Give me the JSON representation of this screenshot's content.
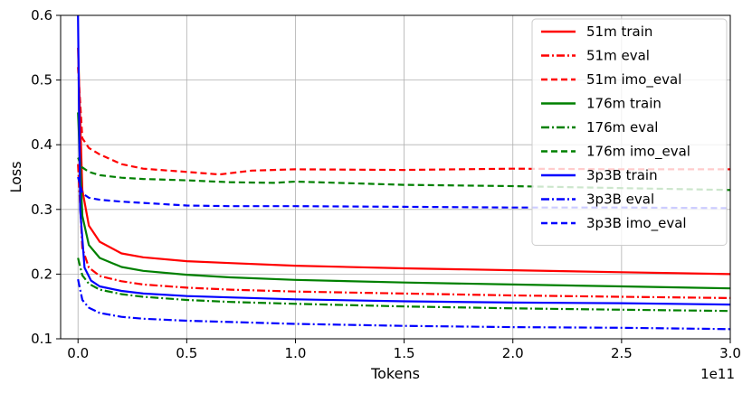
{
  "chart_data": {
    "type": "line",
    "xlabel": "Tokens",
    "ylabel": "Loss",
    "x_offset_label": "1e11",
    "xlim": [
      -0.08,
      3.0
    ],
    "ylim": [
      0.1,
      0.6
    ],
    "x_ticks": [
      0.0,
      0.5,
      1.0,
      1.5,
      2.0,
      2.5,
      3.0
    ],
    "x_tick_labels": [
      "0.0",
      "0.5",
      "1.0",
      "1.5",
      "2.0",
      "2.5",
      "3.0"
    ],
    "y_ticks": [
      0.1,
      0.2,
      0.3,
      0.4,
      0.5,
      0.6
    ],
    "y_tick_labels": [
      "0.1",
      "0.2",
      "0.3",
      "0.4",
      "0.5",
      "0.6"
    ],
    "grid": true,
    "legend_position": "top-right",
    "series": [
      {
        "name": "51m train",
        "color": "#ff0000",
        "style": "solid",
        "x": [
          0.0,
          0.02,
          0.05,
          0.1,
          0.2,
          0.3,
          0.5,
          0.7,
          1.0,
          1.5,
          2.0,
          2.5,
          3.0
        ],
        "y": [
          0.55,
          0.33,
          0.275,
          0.25,
          0.232,
          0.226,
          0.22,
          0.217,
          0.213,
          0.209,
          0.206,
          0.203,
          0.2
        ]
      },
      {
        "name": "51m eval",
        "color": "#ff0000",
        "style": "dashdot",
        "x": [
          0.0,
          0.02,
          0.05,
          0.1,
          0.2,
          0.3,
          0.5,
          0.7,
          1.0,
          1.5,
          2.0,
          2.5,
          3.0
        ],
        "y": [
          0.37,
          0.24,
          0.21,
          0.197,
          0.189,
          0.184,
          0.179,
          0.176,
          0.173,
          0.17,
          0.167,
          0.165,
          0.163
        ]
      },
      {
        "name": "51m imo_eval",
        "color": "#ff0000",
        "style": "dashed",
        "x": [
          0.0,
          0.02,
          0.05,
          0.1,
          0.2,
          0.3,
          0.5,
          0.65,
          0.8,
          1.0,
          1.5,
          2.0,
          2.5,
          3.0
        ],
        "y": [
          0.52,
          0.41,
          0.395,
          0.385,
          0.37,
          0.363,
          0.358,
          0.354,
          0.36,
          0.362,
          0.361,
          0.363,
          0.362,
          0.362
        ]
      },
      {
        "name": "176m train",
        "color": "#008000",
        "style": "solid",
        "x": [
          0.0,
          0.02,
          0.05,
          0.1,
          0.2,
          0.3,
          0.5,
          0.7,
          1.0,
          1.5,
          2.0,
          2.5,
          3.0
        ],
        "y": [
          0.45,
          0.29,
          0.245,
          0.225,
          0.211,
          0.205,
          0.199,
          0.195,
          0.191,
          0.187,
          0.184,
          0.181,
          0.178
        ]
      },
      {
        "name": "176m eval",
        "color": "#008000",
        "style": "dashdot",
        "x": [
          0.0,
          0.02,
          0.05,
          0.1,
          0.2,
          0.3,
          0.5,
          0.7,
          1.0,
          1.5,
          2.0,
          2.5,
          3.0
        ],
        "y": [
          0.225,
          0.198,
          0.185,
          0.176,
          0.169,
          0.165,
          0.16,
          0.157,
          0.154,
          0.15,
          0.147,
          0.145,
          0.143
        ]
      },
      {
        "name": "176m imo_eval",
        "color": "#008000",
        "style": "dashed",
        "x": [
          0.0,
          0.02,
          0.05,
          0.1,
          0.2,
          0.3,
          0.5,
          0.7,
          0.9,
          1.0,
          1.5,
          2.0,
          2.5,
          3.0
        ],
        "y": [
          0.38,
          0.365,
          0.358,
          0.353,
          0.349,
          0.347,
          0.345,
          0.342,
          0.341,
          0.343,
          0.338,
          0.336,
          0.333,
          0.33
        ]
      },
      {
        "name": "3p3B train",
        "color": "#0000ff",
        "style": "solid",
        "x": [
          0.0,
          0.01,
          0.03,
          0.06,
          0.1,
          0.2,
          0.3,
          0.5,
          0.7,
          1.0,
          1.5,
          2.0,
          2.5,
          3.0
        ],
        "y": [
          0.6,
          0.3,
          0.21,
          0.19,
          0.181,
          0.174,
          0.17,
          0.166,
          0.164,
          0.161,
          0.158,
          0.156,
          0.155,
          0.153
        ]
      },
      {
        "name": "3p3B eval",
        "color": "#0000ff",
        "style": "dashdot",
        "x": [
          0.0,
          0.02,
          0.05,
          0.1,
          0.2,
          0.3,
          0.5,
          0.7,
          1.0,
          1.5,
          2.0,
          2.5,
          3.0
        ],
        "y": [
          0.192,
          0.16,
          0.148,
          0.14,
          0.134,
          0.131,
          0.128,
          0.126,
          0.123,
          0.12,
          0.118,
          0.117,
          0.115
        ]
      },
      {
        "name": "3p3B imo_eval",
        "color": "#0000ff",
        "style": "dashed",
        "x": [
          0.0,
          0.02,
          0.05,
          0.1,
          0.2,
          0.3,
          0.5,
          0.7,
          1.0,
          1.5,
          2.0,
          2.5,
          3.0
        ],
        "y": [
          0.35,
          0.325,
          0.318,
          0.315,
          0.312,
          0.31,
          0.306,
          0.305,
          0.305,
          0.304,
          0.303,
          0.303,
          0.302
        ]
      }
    ]
  }
}
